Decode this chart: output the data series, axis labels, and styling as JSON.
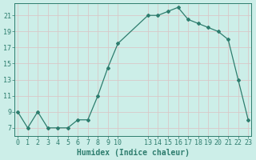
{
  "x": [
    0,
    1,
    2,
    3,
    4,
    5,
    6,
    7,
    8,
    9,
    10,
    13,
    14,
    15,
    16,
    17,
    18,
    19,
    20,
    21,
    22,
    23
  ],
  "y": [
    9.0,
    7.0,
    9.0,
    7.0,
    7.0,
    7.0,
    8.0,
    8.0,
    11.0,
    14.5,
    17.5,
    21.0,
    21.0,
    21.5,
    22.0,
    20.5,
    20.0,
    19.5,
    19.0,
    18.0,
    13.0,
    8.0
  ],
  "xticks": [
    0,
    1,
    2,
    3,
    4,
    5,
    6,
    7,
    8,
    9,
    10,
    13,
    14,
    15,
    16,
    17,
    18,
    19,
    20,
    21,
    22,
    23
  ],
  "xtick_labels": [
    "0",
    "1",
    "2",
    "3",
    "4",
    "5",
    "6",
    "7",
    "8",
    "9",
    "10",
    "13",
    "14",
    "15",
    "16",
    "17",
    "18",
    "19",
    "20",
    "21",
    "22",
    "23"
  ],
  "yticks": [
    7,
    9,
    11,
    13,
    15,
    17,
    19,
    21
  ],
  "ytick_labels": [
    "7",
    "9",
    "11",
    "13",
    "15",
    "17",
    "19",
    "21"
  ],
  "ylim": [
    6.0,
    22.5
  ],
  "xlim": [
    -0.3,
    23.3
  ],
  "xlabel": "Humidex (Indice chaleur)",
  "line_color": "#2e7d6e",
  "marker": "D",
  "marker_size": 2.0,
  "bg_color": "#cceee8",
  "grid_color": "#e8f8f5",
  "tick_fontsize": 6.0,
  "xlabel_fontsize": 7.0
}
